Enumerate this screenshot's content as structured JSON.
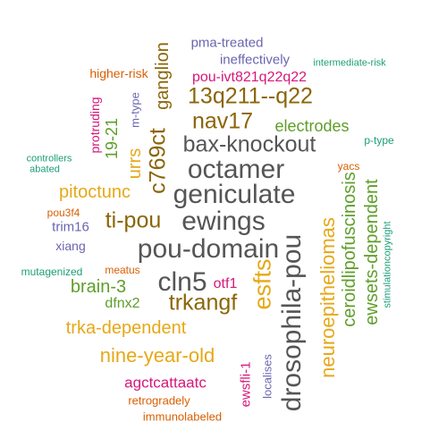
{
  "palette": {
    "gray": "#555555",
    "brown": "#8B6508",
    "gold": "#E6A817",
    "green": "#5E9E2A",
    "magenta": "#D6177A",
    "purple": "#6B65B0",
    "teal": "#1B9E77",
    "orange": "#D95F02"
  },
  "words": [
    {
      "text": "geniculate",
      "color": "gray"
    },
    {
      "text": "ewings",
      "color": "gray"
    },
    {
      "text": "pou-domain",
      "color": "gray"
    },
    {
      "text": "octamer",
      "color": "gray"
    },
    {
      "text": "bax-knockout",
      "color": "gray"
    },
    {
      "text": "drosophila-pou",
      "color": "gray"
    },
    {
      "text": "cln5",
      "color": "gray"
    },
    {
      "text": "13q211--q22",
      "color": "brown"
    },
    {
      "text": "nav17",
      "color": "brown"
    },
    {
      "text": "c769ct",
      "color": "brown"
    },
    {
      "text": "ti-pou",
      "color": "brown"
    },
    {
      "text": "trkangf",
      "color": "brown"
    },
    {
      "text": "ganglion",
      "color": "brown"
    },
    {
      "text": "esfts",
      "color": "gold"
    },
    {
      "text": "neuroepitheliomas",
      "color": "gold"
    },
    {
      "text": "nine-year-old",
      "color": "gold"
    },
    {
      "text": "trka-dependent",
      "color": "gold"
    },
    {
      "text": "pitoctunc",
      "color": "gold"
    },
    {
      "text": "urrs",
      "color": "gold"
    },
    {
      "text": "ceroidlipofuscinosis",
      "color": "green"
    },
    {
      "text": "ewsets-dependent",
      "color": "green"
    },
    {
      "text": "brain-3",
      "color": "green"
    },
    {
      "text": "electrodes",
      "color": "green"
    },
    {
      "text": "19-21",
      "color": "green"
    },
    {
      "text": "dfnx2",
      "color": "green"
    },
    {
      "text": "agctcattaatc",
      "color": "magenta"
    },
    {
      "text": "ewsfli-1",
      "color": "magenta"
    },
    {
      "text": "pou-ivt821q22q22",
      "color": "magenta"
    },
    {
      "text": "protruding",
      "color": "magenta"
    },
    {
      "text": "otf1",
      "color": "magenta"
    },
    {
      "text": "pma-treated",
      "color": "purple"
    },
    {
      "text": "ineffectively",
      "color": "purple"
    },
    {
      "text": "m-type",
      "color": "purple"
    },
    {
      "text": "trim16",
      "color": "purple"
    },
    {
      "text": "xiang",
      "color": "purple"
    },
    {
      "text": "localises",
      "color": "purple"
    },
    {
      "text": "intermediate-risk",
      "color": "teal"
    },
    {
      "text": "controllers",
      "color": "teal"
    },
    {
      "text": "abated",
      "color": "teal"
    },
    {
      "text": "mutagenized",
      "color": "teal"
    },
    {
      "text": "p-type",
      "color": "teal"
    },
    {
      "text": "stimulationcopyright",
      "color": "teal"
    },
    {
      "text": "higher-risk",
      "color": "orange"
    },
    {
      "text": "yacs",
      "color": "orange"
    },
    {
      "text": "pou3f4",
      "color": "orange"
    },
    {
      "text": "meatus",
      "color": "orange"
    },
    {
      "text": "retrogradely",
      "color": "orange"
    },
    {
      "text": "immunolabeled",
      "color": "orange"
    }
  ]
}
